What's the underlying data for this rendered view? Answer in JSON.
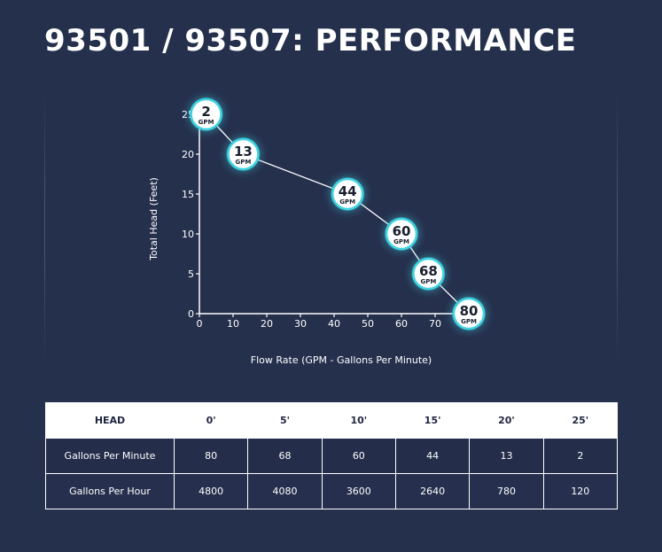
{
  "title": "93501 / 93507: PERFORMANCE",
  "chart_data": {
    "type": "line",
    "xlabel": "Flow Rate (GPM - Gallons Per Minute)",
    "ylabel": "Total Head (Feet)",
    "x_ticks": [
      0,
      10,
      20,
      30,
      40,
      50,
      60,
      70
    ],
    "y_ticks": [
      0,
      5,
      10,
      15,
      20,
      25
    ],
    "xlim": [
      0,
      80
    ],
    "ylim": [
      0,
      25
    ],
    "points": [
      {
        "x": 2,
        "y": 25,
        "label": "2",
        "unit": "GPM"
      },
      {
        "x": 13,
        "y": 20,
        "label": "13",
        "unit": "GPM"
      },
      {
        "x": 44,
        "y": 15,
        "label": "44",
        "unit": "GPM"
      },
      {
        "x": 60,
        "y": 10,
        "label": "60",
        "unit": "GPM"
      },
      {
        "x": 68,
        "y": 5,
        "label": "68",
        "unit": "GPM"
      },
      {
        "x": 80,
        "y": 0,
        "label": "80",
        "unit": "GPM"
      }
    ],
    "colors": {
      "line": "#ffffff",
      "bubble_fill": "#ffffff",
      "bubble_glow": "#3fd3e0",
      "bubble_text": "#1a1f2e"
    }
  },
  "table": {
    "header": [
      "HEAD",
      "0'",
      "5'",
      "10'",
      "15'",
      "20'",
      "25'"
    ],
    "rows": [
      {
        "label": "Gallons Per Minute",
        "values": [
          "80",
          "68",
          "60",
          "44",
          "13",
          "2"
        ]
      },
      {
        "label": "Gallons Per Hour",
        "values": [
          "4800",
          "4080",
          "3600",
          "2640",
          "780",
          "120"
        ]
      }
    ]
  }
}
